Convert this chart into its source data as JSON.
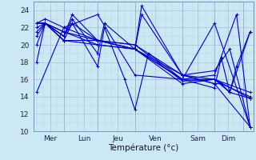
{
  "xlabel": "Température (°c)",
  "xlim": [
    0,
    130
  ],
  "ylim": [
    10,
    25
  ],
  "yticks": [
    10,
    12,
    14,
    16,
    18,
    20,
    22,
    24
  ],
  "day_labels": [
    "Mer",
    "Lun",
    "Jeu",
    "Ven",
    "Sam",
    "Dim"
  ],
  "day_positions": [
    10,
    30,
    50,
    72,
    97,
    115
  ],
  "day_lines": [
    18,
    38,
    60,
    88,
    107,
    124
  ],
  "bg_color": "#cce8f4",
  "line_color": "#0000cc",
  "marker": "+",
  "linewidth": 0.8,
  "markersize": 3,
  "series_manual": [
    {
      "x": [
        2,
        18,
        38,
        60,
        88,
        107,
        128
      ],
      "y": [
        14.5,
        22.0,
        23.5,
        16.5,
        16.0,
        22.5,
        10.5
      ]
    },
    {
      "x": [
        2,
        7,
        18,
        23,
        38,
        42,
        54,
        60,
        68,
        88,
        107,
        111,
        116,
        128
      ],
      "y": [
        18.0,
        22.5,
        20.5,
        22.5,
        17.5,
        22.0,
        16.0,
        12.5,
        19.0,
        16.0,
        15.0,
        18.5,
        14.5,
        21.5
      ]
    },
    {
      "x": [
        2,
        7,
        18,
        23,
        38,
        42,
        60,
        64,
        88,
        107,
        111,
        128
      ],
      "y": [
        20.0,
        22.5,
        21.0,
        23.0,
        19.0,
        22.5,
        19.5,
        24.5,
        16.5,
        15.5,
        15.5,
        14.0
      ]
    },
    {
      "x": [
        2,
        7,
        18,
        23,
        38,
        60,
        64,
        88,
        107,
        128
      ],
      "y": [
        21.0,
        22.5,
        21.0,
        23.5,
        20.5,
        19.5,
        23.5,
        16.5,
        15.5,
        10.5
      ]
    },
    {
      "x": [
        2,
        7,
        18,
        23,
        38,
        60,
        88,
        107,
        128
      ],
      "y": [
        21.5,
        22.5,
        21.0,
        22.5,
        20.5,
        20.0,
        16.5,
        16.0,
        14.5
      ]
    },
    {
      "x": [
        2,
        7,
        18,
        38,
        60,
        88,
        107,
        128
      ],
      "y": [
        22.0,
        22.5,
        20.5,
        20.5,
        20.0,
        15.8,
        16.0,
        13.8
      ]
    },
    {
      "x": [
        2,
        7,
        18,
        38,
        60,
        88,
        107,
        111,
        116,
        128
      ],
      "y": [
        22.5,
        22.5,
        20.5,
        20.0,
        19.5,
        15.5,
        16.0,
        15.5,
        14.5,
        13.8
      ]
    },
    {
      "x": [
        2,
        7,
        18,
        38,
        60,
        88,
        107,
        116,
        120,
        128
      ],
      "y": [
        22.5,
        22.5,
        21.5,
        20.0,
        19.5,
        16.0,
        16.0,
        14.5,
        17.5,
        21.5
      ]
    },
    {
      "x": [
        2,
        7,
        18,
        38,
        60,
        88,
        107,
        120,
        128
      ],
      "y": [
        22.5,
        22.5,
        21.5,
        20.5,
        19.5,
        16.0,
        16.5,
        23.5,
        10.5
      ]
    },
    {
      "x": [
        2,
        7,
        18,
        38,
        60,
        88,
        107,
        116,
        128
      ],
      "y": [
        22.5,
        23.0,
        22.0,
        20.5,
        19.5,
        16.5,
        17.0,
        19.5,
        10.5
      ]
    }
  ]
}
